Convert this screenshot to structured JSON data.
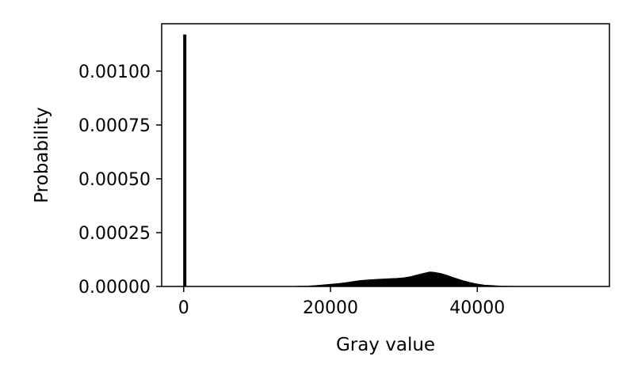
{
  "chart_data": {
    "type": "area",
    "title": "",
    "xlabel": "Gray value",
    "ylabel": "Probability",
    "xlim": [
      -3000,
      58000
    ],
    "ylim": [
      0,
      0.00122
    ],
    "xticks": [
      {
        "value": 0,
        "label": "0"
      },
      {
        "value": 20000,
        "label": "20000"
      },
      {
        "value": 40000,
        "label": "40000"
      }
    ],
    "yticks": [
      {
        "value": 0,
        "label": "0.00000"
      },
      {
        "value": 0.00025,
        "label": "0.00025"
      },
      {
        "value": 0.0005,
        "label": "0.00050"
      },
      {
        "value": 0.00075,
        "label": "0.00075"
      },
      {
        "value": 0.001,
        "label": "0.00100"
      }
    ],
    "grid": false,
    "fill_color": "#000000",
    "spike": {
      "x": 150,
      "y": 0.00117
    },
    "series": [
      {
        "x": [
          15000,
          17000,
          18000,
          19000,
          20000,
          21000,
          22000,
          23000,
          24000,
          25000,
          26000,
          27000,
          28000,
          29000,
          30000,
          31000,
          32000,
          33000,
          33500,
          34000,
          35000,
          36000,
          37000,
          38000,
          39000,
          40000,
          41000,
          42000,
          43000,
          44000,
          45000,
          46000
        ],
        "values": [
          0,
          2e-06,
          4e-06,
          7e-06,
          1e-05,
          1.3e-05,
          1.7e-05,
          2.2e-05,
          2.7e-05,
          3e-05,
          3.2e-05,
          3.4e-05,
          3.6e-05,
          3.7e-05,
          4e-05,
          4.6e-05,
          5.5e-05,
          6.3e-05,
          6.7e-05,
          6.6e-05,
          6e-05,
          5e-05,
          3.8e-05,
          2.7e-05,
          1.8e-05,
          1.1e-05,
          6e-06,
          4e-06,
          2e-06,
          1e-06,
          5e-07,
          0
        ]
      }
    ]
  }
}
